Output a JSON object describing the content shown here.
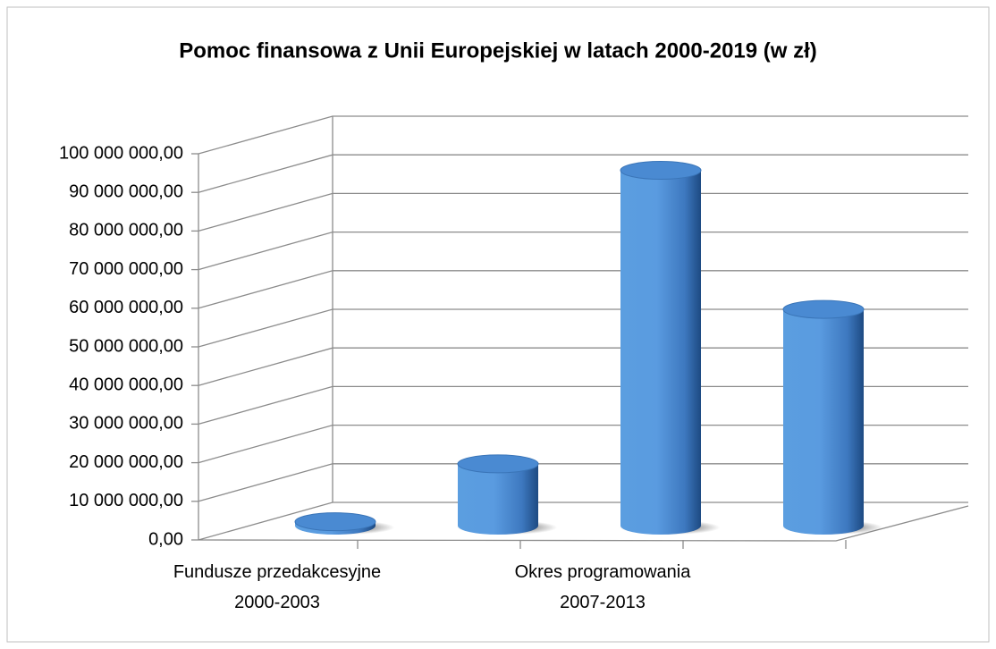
{
  "chart_data": {
    "type": "cylinder3d",
    "title": "Pomoc finansowa z Unii Europejskiej w latach 2000-2019 (w zł)",
    "categories": [
      "Fundusze przedakcesyjne\n2000-2003",
      null,
      "Okres programowania\n2007-2013",
      null
    ],
    "values": [
      1000000,
      16000000,
      92000000,
      56000000
    ],
    "color": "#4a8fd6",
    "ylim": [
      0,
      100000000
    ],
    "yticks": [
      {
        "value": 0,
        "label": "0,00"
      },
      {
        "value": 10000000,
        "label": "10 000 000,00"
      },
      {
        "value": 20000000,
        "label": "20 000 000,00"
      },
      {
        "value": 30000000,
        "label": "30 000 000,00"
      },
      {
        "value": 40000000,
        "label": "40 000 000,00"
      },
      {
        "value": 50000000,
        "label": "50 000 000,00"
      },
      {
        "value": 60000000,
        "label": "60 000 000,00"
      },
      {
        "value": 70000000,
        "label": "70 000 000,00"
      },
      {
        "value": 80000000,
        "label": "80 000 000,00"
      },
      {
        "value": 90000000,
        "label": "90 000 000,00"
      },
      {
        "value": 100000000,
        "label": "100 000 000,00"
      }
    ],
    "grid": true
  }
}
